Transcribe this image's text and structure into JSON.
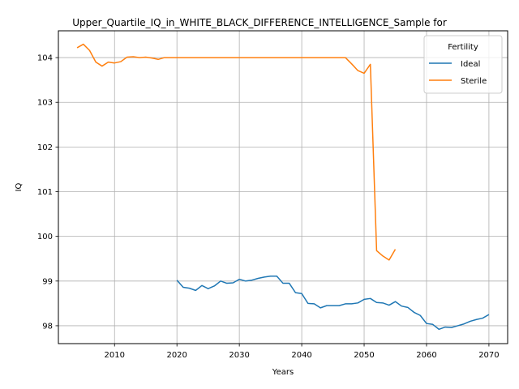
{
  "chart_data": {
    "type": "line",
    "title": "Upper_Quartile_IQ_in_WHITE_BLACK_DIFFERENCE_INTELLIGENCE_Sample for",
    "xlabel": "Years",
    "ylabel": "IQ",
    "xlim": [
      2001,
      2073
    ],
    "ylim": [
      97.6,
      104.6
    ],
    "xticks": [
      2010,
      2020,
      2030,
      2040,
      2050,
      2060,
      2070
    ],
    "yticks": [
      98,
      99,
      100,
      101,
      102,
      103,
      104
    ],
    "grid": true,
    "legend": {
      "title": "Fertility",
      "position": "top-right"
    },
    "series": [
      {
        "name": "Ideal",
        "color": "#1f77b4",
        "x": [
          2020,
          2021,
          2022,
          2023,
          2024,
          2025,
          2026,
          2027,
          2028,
          2029,
          2030,
          2031,
          2032,
          2033,
          2034,
          2035,
          2036,
          2037,
          2038,
          2039,
          2040,
          2041,
          2042,
          2043,
          2044,
          2045,
          2046,
          2047,
          2048,
          2049,
          2050,
          2051,
          2052,
          2053,
          2054,
          2055,
          2056,
          2057,
          2058,
          2059,
          2060,
          2061,
          2062,
          2063,
          2064,
          2065,
          2066,
          2067,
          2068,
          2069,
          2070
        ],
        "y": [
          99.02,
          98.86,
          98.84,
          98.79,
          98.9,
          98.83,
          98.89,
          99.0,
          98.95,
          98.96,
          99.04,
          99.0,
          99.02,
          99.06,
          99.09,
          99.11,
          99.11,
          98.95,
          98.95,
          98.74,
          98.72,
          98.5,
          98.49,
          98.4,
          98.45,
          98.45,
          98.45,
          98.49,
          98.49,
          98.51,
          98.59,
          98.61,
          98.52,
          98.51,
          98.46,
          98.54,
          98.44,
          98.41,
          98.3,
          98.23,
          98.05,
          98.03,
          97.92,
          97.97,
          97.96,
          98.0,
          98.04,
          98.1,
          98.14,
          98.17,
          98.25
        ]
      },
      {
        "name": "Sterile",
        "color": "#ff7f0e",
        "x": [
          2004,
          2005,
          2006,
          2007,
          2008,
          2009,
          2010,
          2011,
          2012,
          2013,
          2014,
          2015,
          2016,
          2017,
          2018,
          2019,
          2020,
          2021,
          2022,
          2023,
          2024,
          2025,
          2026,
          2027,
          2028,
          2029,
          2030,
          2031,
          2032,
          2033,
          2034,
          2035,
          2036,
          2037,
          2038,
          2039,
          2040,
          2041,
          2042,
          2043,
          2044,
          2045,
          2046,
          2047,
          2048,
          2049,
          2050,
          2051,
          2052,
          2053,
          2054,
          2055
        ],
        "y": [
          104.22,
          104.3,
          104.16,
          103.9,
          103.81,
          103.9,
          103.88,
          103.91,
          104.01,
          104.02,
          104.0,
          104.01,
          103.99,
          103.96,
          104.0,
          104.0,
          104.0,
          104.0,
          104.0,
          104.0,
          104.0,
          104.0,
          104.0,
          104.0,
          104.0,
          104.0,
          104.0,
          104.0,
          104.0,
          104.0,
          104.0,
          104.0,
          104.0,
          104.0,
          104.0,
          104.0,
          104.0,
          104.0,
          104.0,
          104.0,
          104.0,
          104.0,
          104.0,
          104.0,
          103.86,
          103.71,
          103.65,
          103.85,
          99.68,
          99.56,
          99.47,
          99.71
        ]
      }
    ]
  }
}
